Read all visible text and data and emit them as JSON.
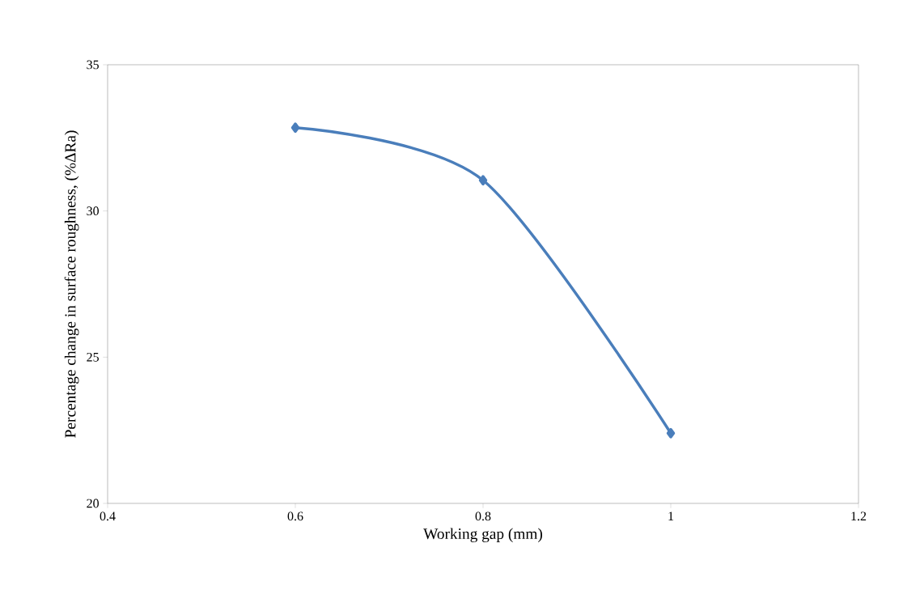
{
  "chart_data": {
    "type": "line",
    "xlabel": "Working gap (mm)",
    "ylabel": "Percentage change in surface roughness, (%ΔRa)",
    "x": [
      0.6,
      0.8,
      1.0
    ],
    "series": [
      {
        "color": "#4a7ebb",
        "values": [
          32.85,
          31.05,
          22.4
        ]
      }
    ],
    "xlim": [
      0.4,
      1.2
    ],
    "xticks": [
      0.4,
      0.6,
      0.8,
      1,
      1.2
    ],
    "ylim": [
      20,
      35
    ],
    "yticks": [
      20,
      25,
      30,
      35
    ],
    "grid": false,
    "marker": "diamond",
    "line_style": "solid"
  }
}
